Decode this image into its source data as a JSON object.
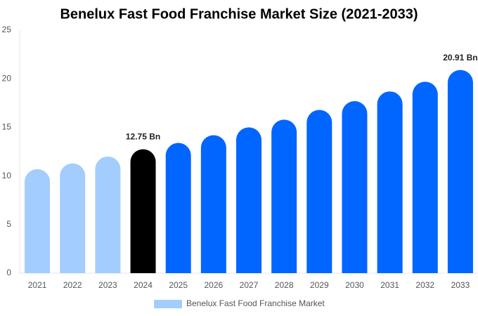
{
  "chart_data": {
    "type": "bar",
    "title": "Benelux Fast Food Franchise Market Size (2021-2033)",
    "categories": [
      "2021",
      "2022",
      "2023",
      "2024",
      "2025",
      "2026",
      "2027",
      "2028",
      "2029",
      "2030",
      "2031",
      "2032",
      "2033"
    ],
    "series": [
      {
        "name": "Benelux Fast Food Franchise Market",
        "color": "#a3cdfd",
        "values": [
          10.7,
          11.3,
          12.0,
          12.75,
          13.4,
          14.2,
          15.0,
          15.8,
          16.8,
          17.7,
          18.7,
          19.7,
          20.91
        ],
        "value_labels": [
          null,
          null,
          null,
          "12.75 Bn",
          null,
          null,
          null,
          null,
          null,
          null,
          null,
          null,
          "20.91 Bn"
        ],
        "colors": [
          "#a3cdfd",
          "#a3cdfd",
          "#a3cdfd",
          "#000000",
          "#0066ff",
          "#0066ff",
          "#0066ff",
          "#0066ff",
          "#0066ff",
          "#0066ff",
          "#0066ff",
          "#0066ff",
          "#0066ff"
        ]
      }
    ],
    "ylim": [
      0,
      25
    ],
    "yticks": [
      0,
      5,
      10,
      15,
      20,
      25
    ],
    "grid": false,
    "legend": "bottom"
  }
}
